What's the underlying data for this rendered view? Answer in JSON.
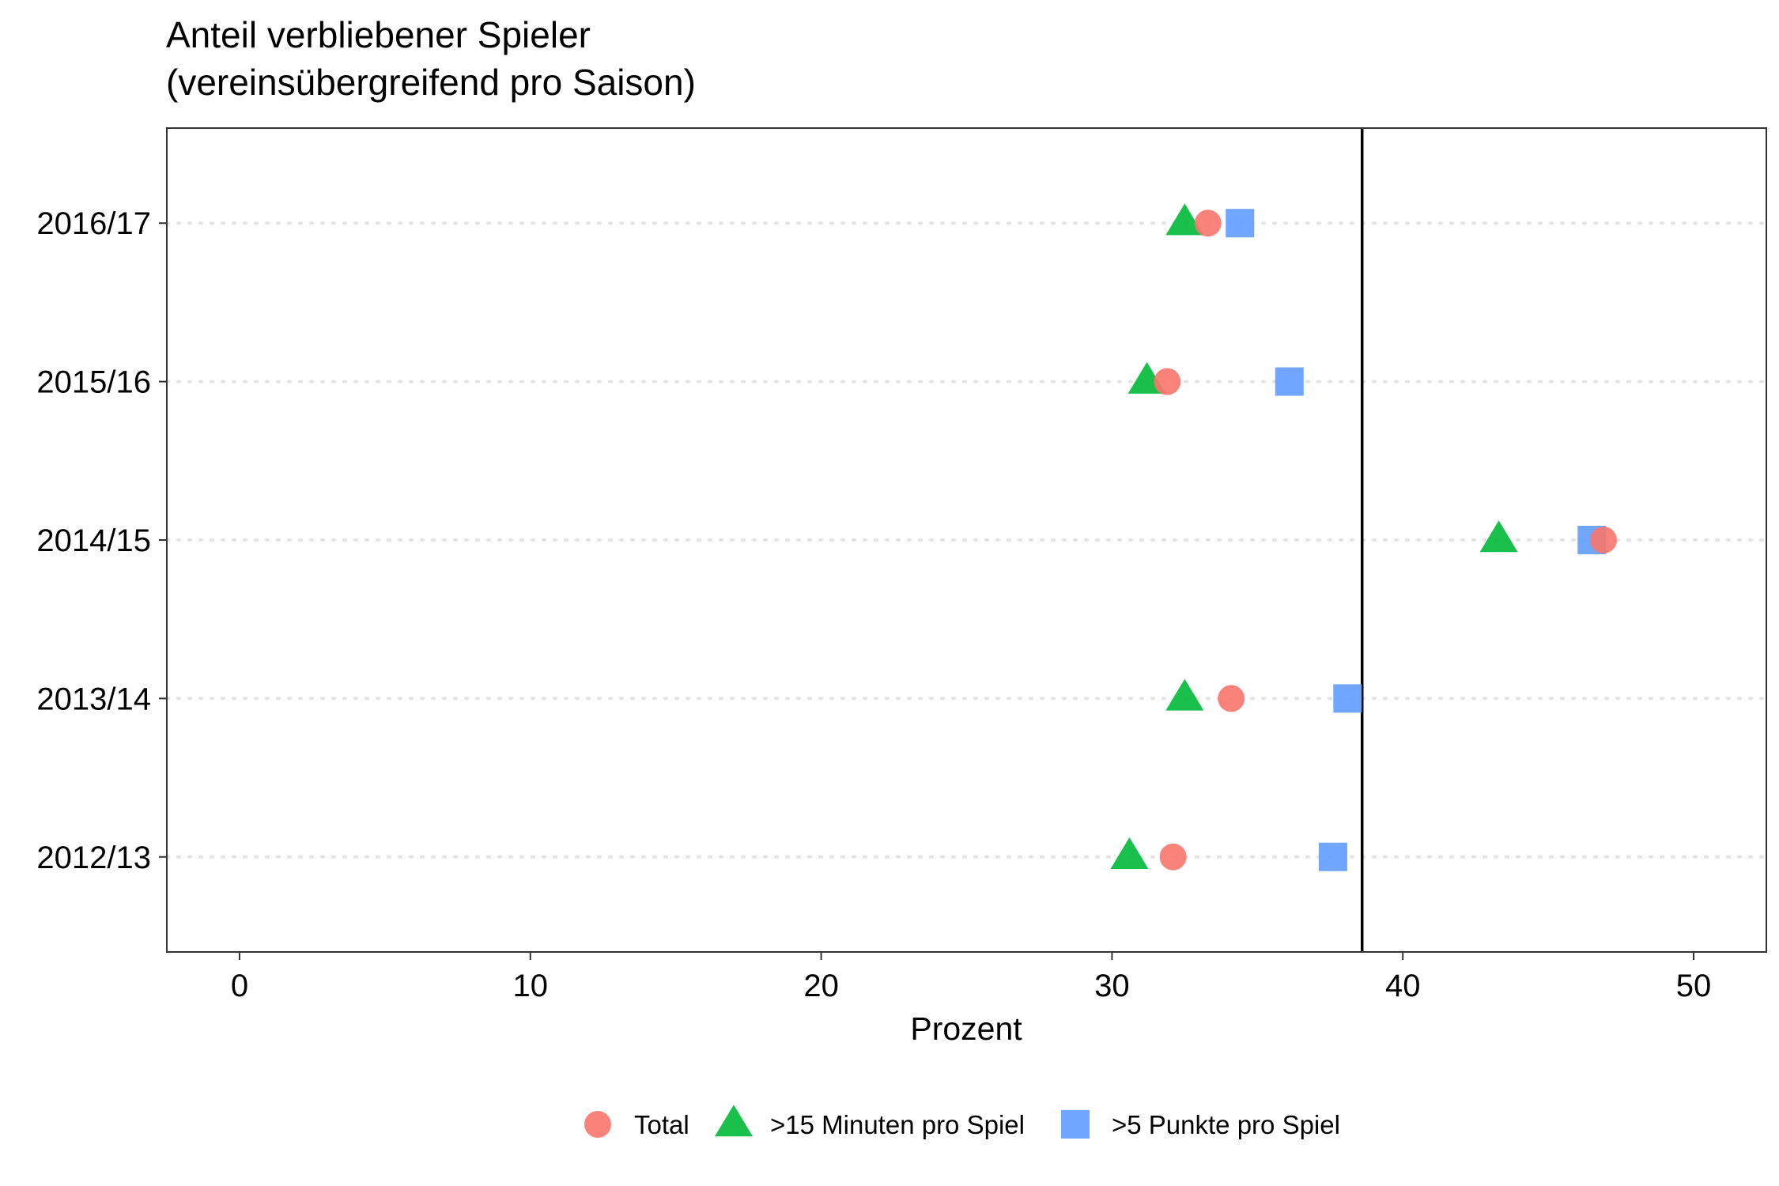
{
  "chart_data": {
    "type": "scatter",
    "title": "Anteil verbliebener Spieler",
    "subtitle": "(vereinsübergreifend pro Saison)",
    "xlabel": "Prozent",
    "ylabel": "",
    "xlim": [
      -2.5,
      52.5
    ],
    "xticks": [
      "0",
      "10",
      "20",
      "30",
      "40",
      "50"
    ],
    "categories": [
      "2012/13",
      "2013/14",
      "2014/15",
      "2015/16",
      "2016/17"
    ],
    "reference_line_x": 38.6,
    "grid": "horizontal dotted",
    "legend_position": "bottom",
    "series": [
      {
        "name": "Total",
        "shape": "circle",
        "color": "#F8766D",
        "values": [
          32.1,
          34.1,
          46.9,
          31.9,
          33.3
        ]
      },
      {
        "name": ">15 Minuten pro Spiel",
        "shape": "triangle",
        "color": "#00BA38",
        "values": [
          30.6,
          32.5,
          43.3,
          31.2,
          32.5
        ]
      },
      {
        "name": ">5 Punkte pro Spiel",
        "shape": "square",
        "color": "#619CFF",
        "values": [
          37.6,
          38.1,
          46.5,
          36.1,
          34.4
        ]
      }
    ]
  }
}
